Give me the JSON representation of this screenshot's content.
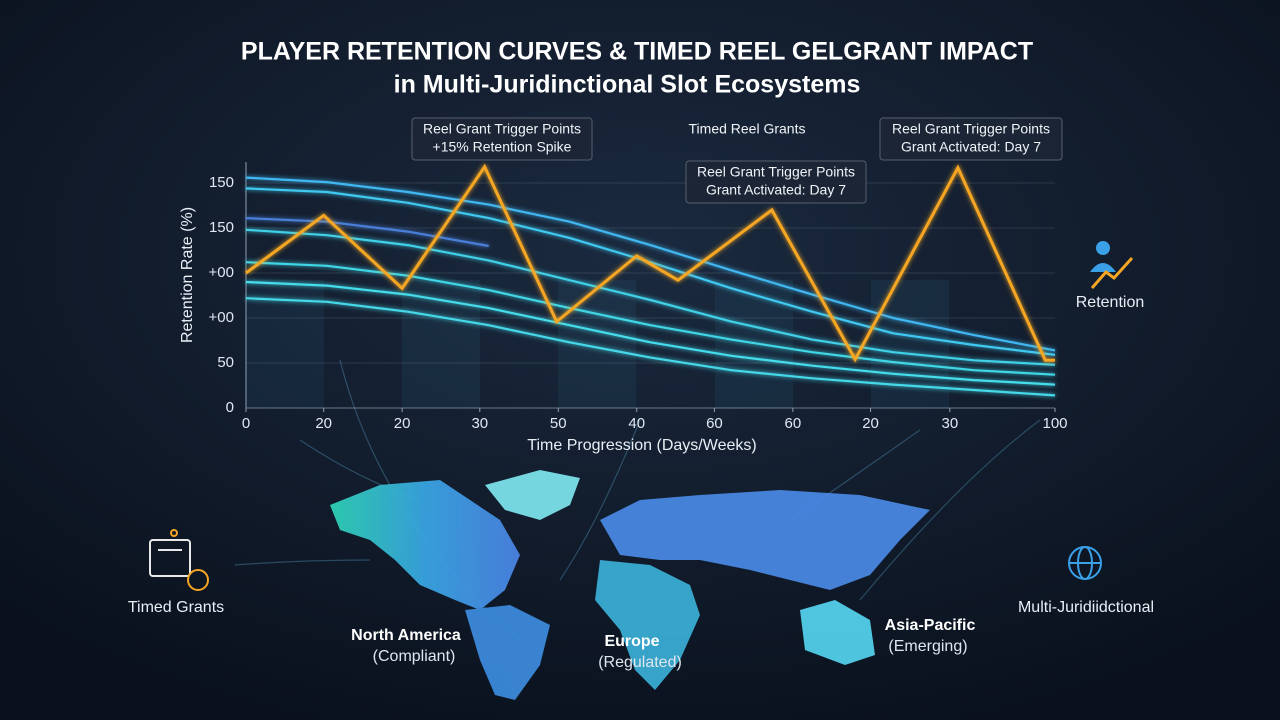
{
  "chart_data": {
    "type": "line",
    "title": "PLAYER RETENTION CURVES & TIMED REEL GELGRANT IMPACT",
    "subtitle": "in Multi-Juridinctional Slot Ecosystems",
    "x_label": "Time Progression (Days/Weeks)",
    "y_label": "Retention Rate (%)",
    "xlim": [
      0,
      100
    ],
    "ylim": [
      0,
      275
    ],
    "xticks": [
      0,
      {
        "value": 9.6,
        "label": "20"
      },
      {
        "value": 19.3,
        "label": "20"
      },
      {
        "value": 28.9,
        "label": "30"
      },
      {
        "value": 38.6,
        "label": "50"
      },
      {
        "value": 48.3,
        "label": "40"
      },
      {
        "value": 57.9,
        "label": "60"
      },
      {
        "value": 67.6,
        "label": "60"
      },
      {
        "value": 77.2,
        "label": "20"
      },
      {
        "value": 87,
        "label": "30"
      },
      100
    ],
    "yticks": [
      0,
      50,
      {
        "value": 100,
        "label": "+00"
      },
      {
        "value": 150,
        "label": "+00"
      },
      {
        "value": 200,
        "label": "150"
      },
      {
        "value": 250,
        "label": "150"
      }
    ],
    "grid": true,
    "x": [
      0,
      10,
      20,
      30,
      40,
      50,
      60,
      70,
      80,
      90,
      100
    ],
    "series": [
      {
        "color": "#3fb7f0",
        "values": [
          256,
          251,
          240,
          226,
          207,
          181,
          153,
          126,
          100,
          81,
          64
        ]
      },
      {
        "color": "#3fc9f0",
        "values": [
          244,
          240,
          228,
          211,
          189,
          162,
          133,
          107,
          83,
          70,
          59
        ]
      },
      {
        "color": "#4a7fd8",
        "values": [
          211,
          207,
          196,
          180,
          null,
          null,
          null,
          null,
          null,
          null,
          null
        ]
      },
      {
        "color": "#3fd0e8",
        "values": [
          198,
          192,
          181,
          164,
          142,
          120,
          96,
          76,
          62,
          53,
          48
        ]
      },
      {
        "color": "#3fd6e6",
        "values": [
          162,
          158,
          147,
          131,
          111,
          92,
          76,
          62,
          51,
          42,
          37
        ]
      },
      {
        "color": "#45dceb",
        "values": [
          140,
          136,
          126,
          111,
          92,
          73,
          58,
          47,
          38,
          31,
          26
        ]
      },
      {
        "color": "#45d8e8",
        "values": [
          122,
          118,
          107,
          92,
          73,
          56,
          42,
          33,
          26,
          20,
          14
        ]
      },
      {
        "name": "Timed Reel Grants",
        "color": "#f5a623",
        "x": [
          0,
          9.6,
          19.3,
          29.5,
          38.4,
          48.3,
          53.4,
          65,
          75.3,
          88,
          98.8,
          100
        ],
        "values": [
          150,
          214,
          133,
          268,
          96,
          169,
          142,
          220,
          54,
          267,
          53,
          53
        ]
      }
    ],
    "annotations": [
      {
        "lines": [
          "Reel Grant Trigger Points",
          "+15% Retention Spike"
        ]
      },
      {
        "lines": [
          "Reel Grant Trigger Points",
          "Grant Activated: Day 7"
        ]
      },
      {
        "lines": [
          "Reel Grant Trigger Points",
          "Grant Activated: Day 7"
        ]
      }
    ]
  },
  "badges": {
    "retention": "Retention",
    "timed": "Timed Grants",
    "multi": "Multi-Juridiidctional"
  },
  "map": {
    "regions": [
      {
        "name": "North America",
        "status": "(Compliant)"
      },
      {
        "name": "Europe",
        "status": "(Regulated)"
      },
      {
        "name": "Asia-Pacific",
        "status": "(Emerging)"
      }
    ]
  }
}
